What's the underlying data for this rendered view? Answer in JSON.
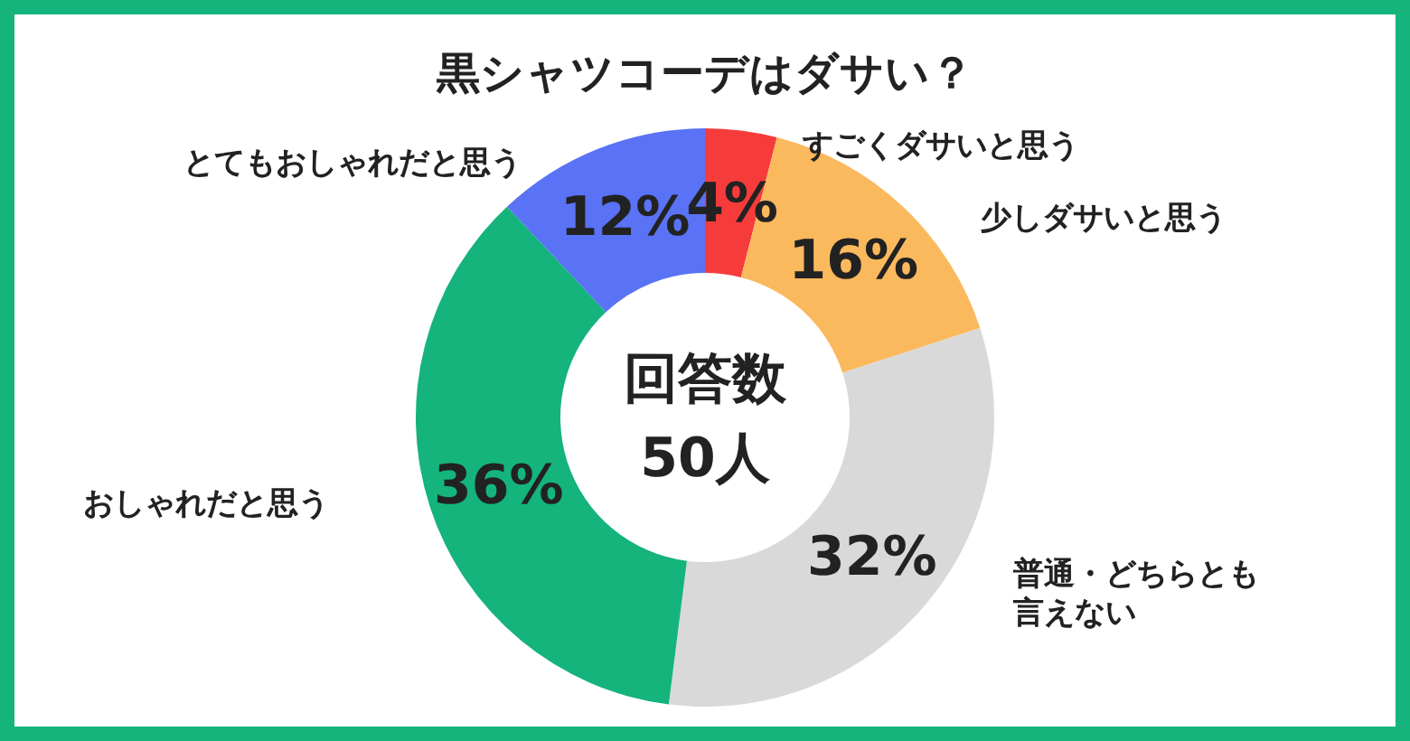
{
  "chart_data": {
    "type": "donut",
    "title": "黒シャツコーデはダサい？",
    "categories": [
      "すごくダサいと思う",
      "少しダサいと思う",
      "普通・どちらとも言えない",
      "おしゃれだと思う",
      "とてもおしゃれだと思う"
    ],
    "values": [
      4,
      16,
      32,
      36,
      12
    ],
    "colors": [
      "#f63b3b",
      "#fbb95e",
      "#d9d9d9",
      "#14b47c",
      "#5a72f5"
    ],
    "value_labels": [
      "4%",
      "16%",
      "32%",
      "36%",
      "12%"
    ],
    "annotations": [
      "回答数",
      "50人"
    ]
  }
}
